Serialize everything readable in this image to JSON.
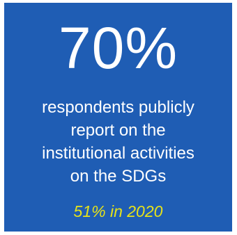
{
  "stat": {
    "value": "70%",
    "description_lines": [
      "respondents publicly",
      "report on the",
      "institutional activities",
      "on the SDGs"
    ],
    "comparison": "51% in 2020"
  },
  "colors": {
    "background": "#1f5db4",
    "text": "#ffffff",
    "highlight": "#e6e21a"
  }
}
